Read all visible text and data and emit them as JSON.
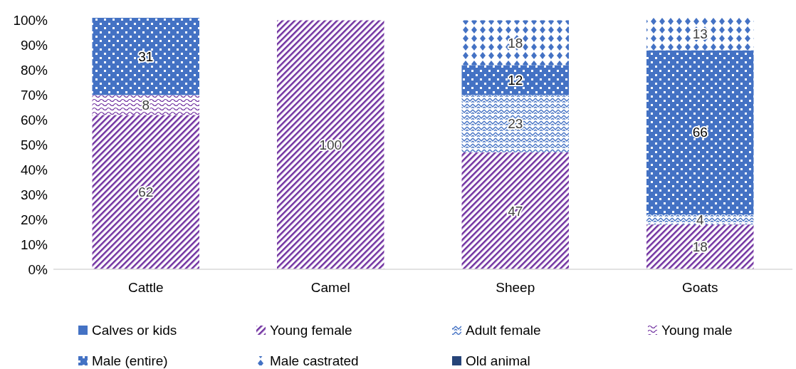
{
  "chart_data": {
    "type": "bar",
    "stacked": true,
    "categories": [
      "Cattle",
      "Camel",
      "Sheep",
      "Goats"
    ],
    "series": [
      {
        "name": "Calves or kids",
        "color": "#4472c4",
        "values": [
          null,
          null,
          null,
          null
        ]
      },
      {
        "name": "Young female",
        "color": "#7030a0",
        "values": [
          62,
          100,
          47,
          18
        ]
      },
      {
        "name": "Adult female",
        "color": "#4472c4",
        "values": [
          null,
          null,
          23,
          4
        ]
      },
      {
        "name": "Young male",
        "color": "#7030a0",
        "values": [
          8,
          null,
          null,
          null
        ]
      },
      {
        "name": "Male (entire)",
        "color": "#4472c4",
        "values": [
          31,
          null,
          12,
          66
        ]
      },
      {
        "name": "Male castrated",
        "color": "#4472c4",
        "values": [
          null,
          null,
          18,
          13
        ]
      },
      {
        "name": "Old animal",
        "color": "#264478",
        "values": [
          null,
          null,
          null,
          null
        ]
      }
    ],
    "ylim": [
      0,
      101
    ],
    "yticks": [
      {
        "value": 0,
        "label": "0%"
      },
      {
        "value": 10,
        "label": "10%"
      },
      {
        "value": 20,
        "label": "20%"
      },
      {
        "value": 30,
        "label": "30%"
      },
      {
        "value": 40,
        "label": "40%"
      },
      {
        "value": 50,
        "label": "50%"
      },
      {
        "value": 60,
        "label": "60%"
      },
      {
        "value": 70,
        "label": "70%"
      },
      {
        "value": 80,
        "label": "80%"
      },
      {
        "value": 90,
        "label": "90%"
      },
      {
        "value": 100,
        "label": "100%"
      }
    ],
    "data_labels": true,
    "legend": "bottom",
    "grid": false
  }
}
